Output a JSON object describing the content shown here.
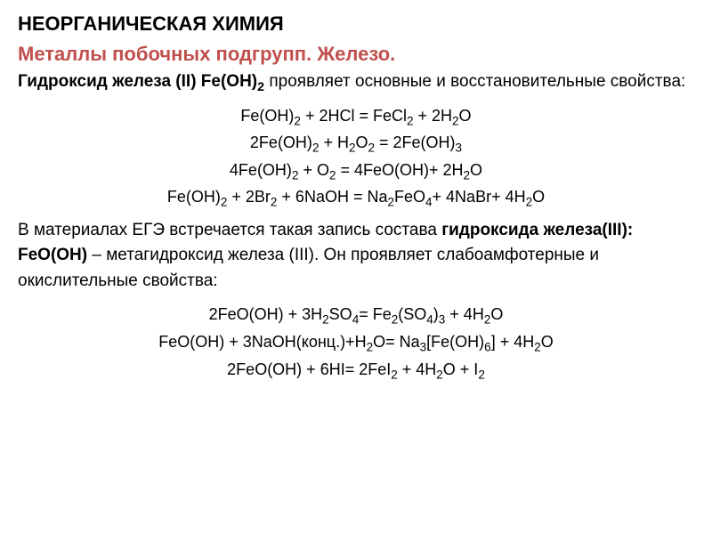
{
  "category": "НЕОРГАНИЧЕСКАЯ ХИМИЯ",
  "title": "Металлы побочных подгрупп. Железо.",
  "intro_bold": "Гидроксид железа (II) Fe(OH)",
  "intro_sub": "2",
  "intro_rest": " проявляет основные и восстановительные свойства:",
  "equations1": [
    {
      "parts": [
        {
          "text": "Fe(OH)"
        },
        {
          "sub": "2"
        },
        {
          "text": " + 2HCl = FeCl"
        },
        {
          "sub": "2"
        },
        {
          "text": " + 2H"
        },
        {
          "sub": "2"
        },
        {
          "text": "O"
        }
      ]
    },
    {
      "parts": [
        {
          "text": "2Fe(OH)"
        },
        {
          "sub": "2"
        },
        {
          "text": " + H"
        },
        {
          "sub": "2"
        },
        {
          "text": "O"
        },
        {
          "sub": "2"
        },
        {
          "text": " = 2Fe(OH)"
        },
        {
          "sub": "3"
        }
      ]
    },
    {
      "parts": [
        {
          "text": "4Fe(OH)"
        },
        {
          "sub": "2"
        },
        {
          "text": " + O"
        },
        {
          "sub": "2"
        },
        {
          "text": " = 4FeO(OH)+ 2H"
        },
        {
          "sub": "2"
        },
        {
          "text": "O"
        }
      ]
    },
    {
      "parts": [
        {
          "text": "Fe(OH)"
        },
        {
          "sub": "2"
        },
        {
          "text": " + 2Br"
        },
        {
          "sub": "2"
        },
        {
          "text": " + 6NaOH = Na"
        },
        {
          "sub": "2"
        },
        {
          "text": "FeO"
        },
        {
          "sub": "4"
        },
        {
          "text": "+ 4NaBr+ 4H"
        },
        {
          "sub": "2"
        },
        {
          "text": "O"
        }
      ]
    }
  ],
  "paragraph1_1": "В материалах ЕГЭ встречается такая запись состава ",
  "paragraph1_bold": "гидроксида железа(III): FeO(OH)",
  "paragraph1_2": " – метагидроксид железа (III). Он проявляет слабоамфотерные и окислительные свойства:",
  "equations2": [
    {
      "parts": [
        {
          "text": "2FeO(OH) + 3H"
        },
        {
          "sub": "2"
        },
        {
          "text": "SO"
        },
        {
          "sub": "4"
        },
        {
          "text": "= Fe"
        },
        {
          "sub": "2"
        },
        {
          "text": "(SO"
        },
        {
          "sub": "4"
        },
        {
          "text": ")"
        },
        {
          "sub": "3"
        },
        {
          "text": " + 4H"
        },
        {
          "sub": "2"
        },
        {
          "text": "O"
        }
      ]
    },
    {
      "parts": [
        {
          "text": "FeO(OH) +  3NaOH(конц.)+H"
        },
        {
          "sub": "2"
        },
        {
          "text": "O= Na"
        },
        {
          "sub": "3"
        },
        {
          "text": "[Fe(OH)"
        },
        {
          "sub": "6"
        },
        {
          "text": "] + 4H"
        },
        {
          "sub": "2"
        },
        {
          "text": "O"
        }
      ]
    },
    {
      "parts": [
        {
          "text": "2FeO(OH) + 6HI= 2FeI"
        },
        {
          "sub": "2"
        },
        {
          "text": " + 4H"
        },
        {
          "sub": "2"
        },
        {
          "text": "O + I"
        },
        {
          "sub": "2"
        }
      ]
    }
  ]
}
